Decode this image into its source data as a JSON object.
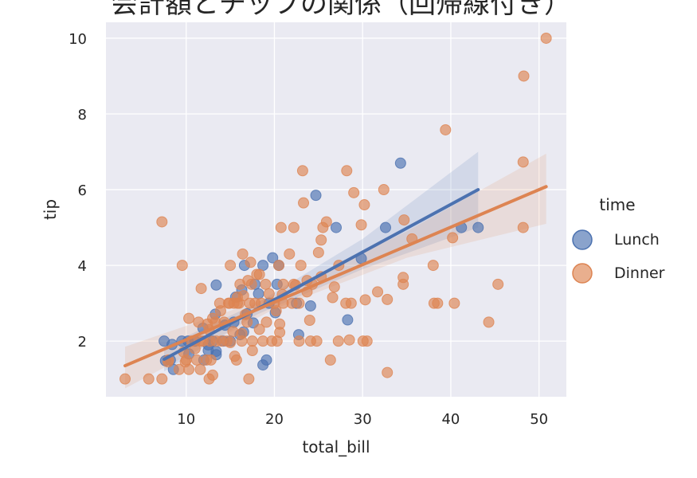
{
  "chart_data": {
    "type": "scatter",
    "title": "会計額とチップの関係（回帰線付き）",
    "xlabel": "total_bill",
    "ylabel": "tip",
    "xlim": [
      0.9,
      53.1
    ],
    "ylim": [
      0.53,
      10.42
    ],
    "xticks": [
      10,
      20,
      30,
      40,
      50
    ],
    "yticks": [
      2,
      4,
      6,
      8,
      10
    ],
    "grid": true,
    "legend": {
      "title": "time",
      "placement": "right"
    },
    "series": [
      {
        "name": "Lunch",
        "color": "#4c72b0",
        "points": [
          [
            7.5,
            2.0
          ],
          [
            34.3,
            6.7
          ],
          [
            24.7,
            5.85
          ],
          [
            27.0,
            5.0
          ],
          [
            32.6,
            5.0
          ],
          [
            41.2,
            5.0
          ],
          [
            43.1,
            5.0
          ],
          [
            29.85,
            4.18
          ],
          [
            19.8,
            4.2
          ],
          [
            20.5,
            4.0
          ],
          [
            18.7,
            4.0
          ],
          [
            16.6,
            4.0
          ],
          [
            13.4,
            3.48
          ],
          [
            18.2,
            3.25
          ],
          [
            24.1,
            2.93
          ],
          [
            28.3,
            2.56
          ],
          [
            22.75,
            2.17
          ],
          [
            18.7,
            1.37
          ],
          [
            19.1,
            1.5
          ],
          [
            13.4,
            1.64
          ],
          [
            13.4,
            1.73
          ],
          [
            8.55,
            1.25
          ],
          [
            8.2,
            1.5
          ],
          [
            7.65,
            1.48
          ],
          [
            8.4,
            1.91
          ],
          [
            9.5,
            2.0
          ],
          [
            10.2,
            2.0
          ],
          [
            11.0,
            2.0
          ],
          [
            12.5,
            1.9
          ],
          [
            14.2,
            2.0
          ],
          [
            14.4,
            2.42
          ],
          [
            11.9,
            2.34
          ],
          [
            12.5,
            1.75
          ],
          [
            16.1,
            2.17
          ],
          [
            13.3,
            2.71
          ],
          [
            16.9,
            2.72
          ],
          [
            15.6,
            3.16
          ],
          [
            17.6,
            2.48
          ],
          [
            20.3,
            3.5
          ],
          [
            16.3,
            3.35
          ],
          [
            15.4,
            2.5
          ],
          [
            10.3,
            1.66
          ],
          [
            12.0,
            1.5
          ],
          [
            20.1,
            2.75
          ],
          [
            22.5,
            3.0
          ],
          [
            19.4,
            3.0
          ],
          [
            15.0,
            2.0
          ],
          [
            13.0,
            2.0
          ],
          [
            16.5,
            2.24
          ],
          [
            17.8,
            3.5
          ]
        ]
      },
      {
        "name": "Dinner",
        "color": "#dd8452",
        "points": [
          [
            3.07,
            1.0
          ],
          [
            5.75,
            1.0
          ],
          [
            7.25,
            1.0
          ],
          [
            7.25,
            5.15
          ],
          [
            9.55,
            4.0
          ],
          [
            11.7,
            3.39
          ],
          [
            17.1,
            1.0
          ],
          [
            12.6,
            1.0
          ],
          [
            13.0,
            1.1
          ],
          [
            32.8,
            1.17
          ],
          [
            44.3,
            2.5
          ],
          [
            45.35,
            3.5
          ],
          [
            50.81,
            10.0
          ],
          [
            48.27,
            9.0
          ],
          [
            39.4,
            7.58
          ],
          [
            48.2,
            6.73
          ],
          [
            48.2,
            5.0
          ],
          [
            23.2,
            6.5
          ],
          [
            28.2,
            6.5
          ],
          [
            29.0,
            5.92
          ],
          [
            30.2,
            5.6
          ],
          [
            32.4,
            6.0
          ],
          [
            23.3,
            5.65
          ],
          [
            29.85,
            5.07
          ],
          [
            34.7,
            5.2
          ],
          [
            35.6,
            4.7
          ],
          [
            40.2,
            4.73
          ],
          [
            38.0,
            4.0
          ],
          [
            40.4,
            3.0
          ],
          [
            38.5,
            3.0
          ],
          [
            38.1,
            3.0
          ],
          [
            34.6,
            3.5
          ],
          [
            34.6,
            3.68
          ],
          [
            32.8,
            3.1
          ],
          [
            30.3,
            3.09
          ],
          [
            28.7,
            3.0
          ],
          [
            28.1,
            3.0
          ],
          [
            31.7,
            3.3
          ],
          [
            30.05,
            2.0
          ],
          [
            30.5,
            2.0
          ],
          [
            28.5,
            2.03
          ],
          [
            26.35,
            1.5
          ],
          [
            27.25,
            2.0
          ],
          [
            24.8,
            2.0
          ],
          [
            24.1,
            2.0
          ],
          [
            22.8,
            2.0
          ],
          [
            20.3,
            2.0
          ],
          [
            19.7,
            2.0
          ],
          [
            24.0,
            2.55
          ],
          [
            26.8,
            3.43
          ],
          [
            26.6,
            3.15
          ],
          [
            20.75,
            5.0
          ],
          [
            22.2,
            5.0
          ],
          [
            25.9,
            5.15
          ],
          [
            25.3,
            4.67
          ],
          [
            25.0,
            4.34
          ],
          [
            25.5,
            5.0
          ],
          [
            21.7,
            4.3
          ],
          [
            20.5,
            4.0
          ],
          [
            23.0,
            4.0
          ],
          [
            15.0,
            4.0
          ],
          [
            16.4,
            4.3
          ],
          [
            17.3,
            4.08
          ],
          [
            18.3,
            3.76
          ],
          [
            18.0,
            3.76
          ],
          [
            16.1,
            3.5
          ],
          [
            17.4,
            3.5
          ],
          [
            19.0,
            3.5
          ],
          [
            21.0,
            3.5
          ],
          [
            22.4,
            3.48
          ],
          [
            23.7,
            3.6
          ],
          [
            25.3,
            3.7
          ],
          [
            27.3,
            4.0
          ],
          [
            20.9,
            3.23
          ],
          [
            22.0,
            3.0
          ],
          [
            18.5,
            3.0
          ],
          [
            17.2,
            3.0
          ],
          [
            16.0,
            3.0
          ],
          [
            15.4,
            3.0
          ],
          [
            14.8,
            3.0
          ],
          [
            13.8,
            3.0
          ],
          [
            13.0,
            2.6
          ],
          [
            10.3,
            2.6
          ],
          [
            11.4,
            2.5
          ],
          [
            12.4,
            2.45
          ],
          [
            14.3,
            2.5
          ],
          [
            15.3,
            2.25
          ],
          [
            16.3,
            2.0
          ],
          [
            17.5,
            2.0
          ],
          [
            18.3,
            2.31
          ],
          [
            20.6,
            2.45
          ],
          [
            20.6,
            2.23
          ],
          [
            15.0,
            1.96
          ],
          [
            15.7,
            1.5
          ],
          [
            15.5,
            1.6
          ],
          [
            17.5,
            1.75
          ],
          [
            14.0,
            2.0
          ],
          [
            12.7,
            2.0
          ],
          [
            11.6,
            2.0
          ],
          [
            10.6,
            2.0
          ],
          [
            9.7,
            1.71
          ],
          [
            9.9,
            1.45
          ],
          [
            10.3,
            1.25
          ],
          [
            11.2,
            1.5
          ],
          [
            11.6,
            1.25
          ],
          [
            12.3,
            1.5
          ],
          [
            12.8,
            1.5
          ],
          [
            8.0,
            1.5
          ],
          [
            9.2,
            1.25
          ],
          [
            7.95,
            1.45
          ],
          [
            10.0,
            1.5
          ],
          [
            13.4,
            2.0
          ],
          [
            14.6,
            2.0
          ],
          [
            16.9,
            2.5
          ],
          [
            18.7,
            2.0
          ],
          [
            19.1,
            2.5
          ],
          [
            21.0,
            3.0
          ],
          [
            22.8,
            3.0
          ],
          [
            23.7,
            3.3
          ],
          [
            20.0,
            3.0
          ],
          [
            19.4,
            3.25
          ],
          [
            16.7,
            2.7
          ],
          [
            17.8,
            3.0
          ],
          [
            13.9,
            2.8
          ],
          [
            12.6,
            2.3
          ],
          [
            14.9,
            3.0
          ],
          [
            15.8,
            3.0
          ],
          [
            17.0,
            3.6
          ],
          [
            15.8,
            3.16
          ],
          [
            20.2,
            2.8
          ],
          [
            13.3,
            2.5
          ],
          [
            11.0,
            1.8
          ],
          [
            11.9,
            2.0
          ],
          [
            16.5,
            3.2
          ],
          [
            22.2,
            3.5
          ],
          [
            24.3,
            3.5
          ],
          [
            16.3,
            2.2
          ]
        ]
      }
    ],
    "regression": [
      {
        "series": "Lunch",
        "x": [
          7.5,
          18,
          30,
          43.1
        ],
        "y": [
          1.52,
          2.84,
          4.35,
          6.0
        ],
        "ci_low": [
          1.2,
          2.7,
          3.9,
          5.0
        ],
        "ci_high": [
          1.85,
          3.0,
          4.7,
          7.0
        ]
      },
      {
        "series": "Dinner",
        "x": [
          3.07,
          20,
          35,
          50.81
        ],
        "y": [
          1.35,
          3.03,
          4.51,
          6.08
        ],
        "ci_low": [
          0.75,
          2.85,
          4.2,
          5.1
        ],
        "ci_high": [
          1.85,
          3.2,
          4.9,
          6.95
        ]
      }
    ]
  }
}
